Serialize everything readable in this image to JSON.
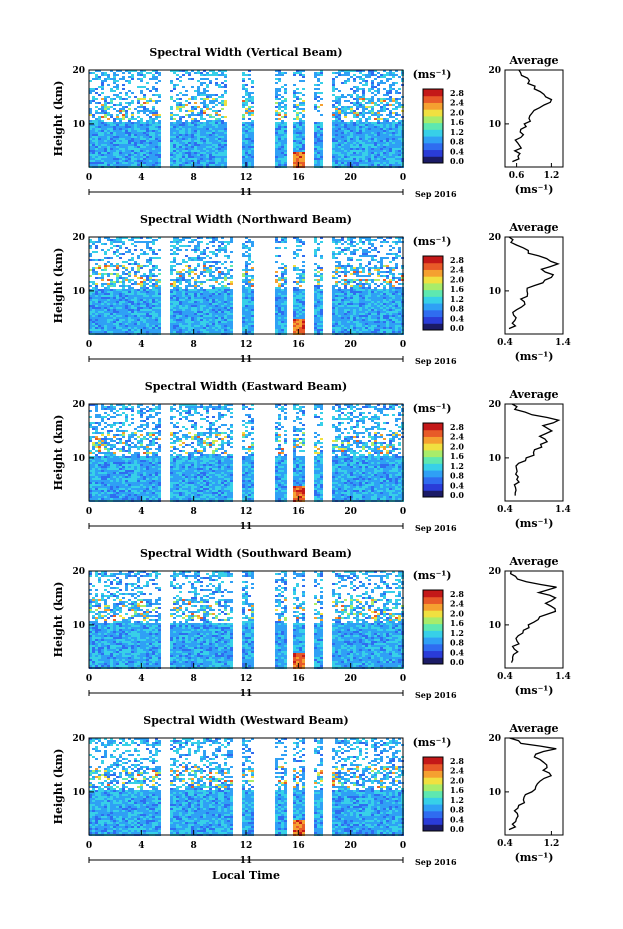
{
  "colors": {
    "scale": [
      "#1b1b66",
      "#2a3cd8",
      "#2f6cf0",
      "#2fa0f5",
      "#37d0e8",
      "#5ee8b0",
      "#a8ec6a",
      "#f0e040",
      "#f5a030",
      "#e85a28",
      "#c41818"
    ],
    "line": "#000000",
    "bg": "#ffffff"
  },
  "shared": {
    "ylabel": "Height (km)",
    "xlabel": "Local Time",
    "date_label": "Sep 2016",
    "day_label": "11",
    "unit_label": "(ms⁻¹)",
    "avg_title": "Average",
    "avg_unit": "(ms⁻¹)"
  },
  "chart_data": [
    {
      "type": "heatmap",
      "title": "Spectral Width (Vertical Beam)",
      "xlabel": "",
      "ylabel": "Height (km)",
      "xlim": [
        0,
        24
      ],
      "ylim": [
        2,
        20
      ],
      "xticks": [
        "0",
        "4",
        "8",
        "12",
        "16",
        "20",
        "0"
      ],
      "yticks": [
        "20",
        "10"
      ],
      "colorbar_ticks": [
        "2.8",
        "2.4",
        "2.0",
        "1.6",
        "1.2",
        "0.8",
        "0.4",
        "0.0"
      ],
      "data_gaps_hours": [
        [
          5.5,
          6.0
        ],
        [
          10.5,
          11.5
        ],
        [
          12.5,
          14.0
        ],
        [
          15.0,
          15.5
        ],
        [
          16.5,
          17.0
        ],
        [
          17.8,
          18.5
        ]
      ],
      "average_profile": {
        "xticks": [
          "0.6",
          "1.2"
        ],
        "xlim": [
          0.4,
          1.4
        ],
        "points": [
          [
            0.55,
            3
          ],
          [
            0.6,
            4
          ],
          [
            0.58,
            5
          ],
          [
            0.65,
            6
          ],
          [
            0.6,
            7
          ],
          [
            0.7,
            8
          ],
          [
            0.65,
            9
          ],
          [
            0.75,
            10
          ],
          [
            0.8,
            11
          ],
          [
            0.85,
            12
          ],
          [
            1.0,
            13
          ],
          [
            1.2,
            14
          ],
          [
            1.1,
            15
          ],
          [
            1.0,
            16
          ],
          [
            0.9,
            17
          ],
          [
            0.8,
            18
          ],
          [
            0.7,
            19
          ],
          [
            0.65,
            20
          ]
        ]
      }
    },
    {
      "type": "heatmap",
      "title": "Spectral Width (Northward Beam)",
      "xlabel": "",
      "ylabel": "Height (km)",
      "xlim": [
        0,
        24
      ],
      "ylim": [
        2,
        20
      ],
      "xticks": [
        "0",
        "4",
        "8",
        "12",
        "16",
        "20",
        "0"
      ],
      "yticks": [
        "20",
        "10"
      ],
      "colorbar_ticks": [
        "2.8",
        "2.4",
        "2.0",
        "1.6",
        "1.2",
        "0.8",
        "0.4",
        "0.0"
      ],
      "data_gaps_hours": [
        [
          5.5,
          6.0
        ],
        [
          11.0,
          11.5
        ],
        [
          12.5,
          14.0
        ],
        [
          15.0,
          15.5
        ],
        [
          16.5,
          17.0
        ],
        [
          17.8,
          18.5
        ]
      ],
      "average_profile": {
        "xticks": [
          "0.4",
          "1.4"
        ],
        "xlim": [
          0.4,
          1.4
        ],
        "points": [
          [
            0.5,
            3
          ],
          [
            0.55,
            4
          ],
          [
            0.6,
            5
          ],
          [
            0.55,
            6
          ],
          [
            0.65,
            7
          ],
          [
            0.7,
            8
          ],
          [
            0.75,
            9
          ],
          [
            0.8,
            10
          ],
          [
            0.9,
            11
          ],
          [
            1.1,
            12
          ],
          [
            1.25,
            13
          ],
          [
            1.0,
            14
          ],
          [
            1.3,
            15
          ],
          [
            1.1,
            16
          ],
          [
            0.8,
            17
          ],
          [
            0.7,
            18
          ],
          [
            0.5,
            19
          ],
          [
            0.45,
            20
          ]
        ]
      }
    },
    {
      "type": "heatmap",
      "title": "Spectral Width (Eastward Beam)",
      "xlabel": "",
      "ylabel": "Height (km)",
      "xlim": [
        0,
        24
      ],
      "ylim": [
        2,
        20
      ],
      "xticks": [
        "0",
        "4",
        "8",
        "12",
        "16",
        "20",
        "0"
      ],
      "yticks": [
        "20",
        "10"
      ],
      "colorbar_ticks": [
        "2.8",
        "2.4",
        "2.0",
        "1.6",
        "1.2",
        "0.8",
        "0.4",
        "0.0"
      ],
      "data_gaps_hours": [
        [
          5.5,
          6.0
        ],
        [
          11.0,
          11.5
        ],
        [
          12.5,
          14.0
        ],
        [
          15.0,
          15.5
        ],
        [
          16.5,
          17.0
        ],
        [
          17.8,
          18.5
        ]
      ],
      "average_profile": {
        "xticks": [
          "0.4",
          "1.4"
        ],
        "xlim": [
          0.4,
          1.4
        ],
        "points": [
          [
            0.55,
            3
          ],
          [
            0.6,
            4
          ],
          [
            0.55,
            5
          ],
          [
            0.6,
            6
          ],
          [
            0.58,
            7
          ],
          [
            0.6,
            8
          ],
          [
            0.65,
            9
          ],
          [
            0.8,
            10
          ],
          [
            0.9,
            11
          ],
          [
            1.0,
            12
          ],
          [
            1.15,
            13
          ],
          [
            1.0,
            14
          ],
          [
            1.2,
            15
          ],
          [
            1.05,
            16
          ],
          [
            1.3,
            17
          ],
          [
            0.9,
            18
          ],
          [
            0.6,
            19
          ],
          [
            0.5,
            20
          ]
        ]
      }
    },
    {
      "type": "heatmap",
      "title": "Spectral Width (Southward Beam)",
      "xlabel": "",
      "ylabel": "Height (km)",
      "xlim": [
        0,
        24
      ],
      "ylim": [
        2,
        20
      ],
      "xticks": [
        "0",
        "4",
        "8",
        "12",
        "16",
        "20",
        "0"
      ],
      "yticks": [
        "20",
        "10"
      ],
      "colorbar_ticks": [
        "2.8",
        "2.4",
        "2.0",
        "1.6",
        "1.2",
        "0.8",
        "0.4",
        "0.0"
      ],
      "data_gaps_hours": [
        [
          5.5,
          6.0
        ],
        [
          11.0,
          11.5
        ],
        [
          12.5,
          14.0
        ],
        [
          15.0,
          15.5
        ],
        [
          16.5,
          17.0
        ],
        [
          17.8,
          18.5
        ]
      ],
      "average_profile": {
        "xticks": [
          "0.4",
          "1.4"
        ],
        "xlim": [
          0.4,
          1.4
        ],
        "points": [
          [
            0.5,
            3
          ],
          [
            0.55,
            4
          ],
          [
            0.6,
            5
          ],
          [
            0.55,
            6
          ],
          [
            0.6,
            7
          ],
          [
            0.62,
            8
          ],
          [
            0.7,
            9
          ],
          [
            0.8,
            10
          ],
          [
            0.95,
            11
          ],
          [
            1.15,
            12
          ],
          [
            1.25,
            13
          ],
          [
            1.1,
            14
          ],
          [
            1.3,
            15
          ],
          [
            1.0,
            16
          ],
          [
            1.3,
            17
          ],
          [
            0.8,
            18
          ],
          [
            0.55,
            19
          ],
          [
            0.5,
            20
          ]
        ]
      }
    },
    {
      "type": "heatmap",
      "title": "Spectral Width (Westward Beam)",
      "xlabel": "Local Time",
      "ylabel": "Height (km)",
      "xlim": [
        0,
        24
      ],
      "ylim": [
        2,
        20
      ],
      "xticks": [
        "0",
        "4",
        "8",
        "12",
        "16",
        "20",
        "0"
      ],
      "yticks": [
        "20",
        "10"
      ],
      "colorbar_ticks": [
        "2.8",
        "2.4",
        "2.0",
        "1.6",
        "1.2",
        "0.8",
        "0.4",
        "0.0"
      ],
      "data_gaps_hours": [
        [
          5.5,
          6.0
        ],
        [
          11.0,
          11.5
        ],
        [
          12.5,
          14.0
        ],
        [
          15.0,
          15.5
        ],
        [
          16.5,
          17.0
        ],
        [
          17.8,
          18.5
        ]
      ],
      "average_profile": {
        "xticks": [
          "0.4",
          "1.2"
        ],
        "xlim": [
          0.4,
          1.4
        ],
        "points": [
          [
            0.5,
            3
          ],
          [
            0.55,
            4
          ],
          [
            0.6,
            5
          ],
          [
            0.58,
            6
          ],
          [
            0.62,
            7
          ],
          [
            0.7,
            8
          ],
          [
            0.75,
            9
          ],
          [
            0.85,
            10
          ],
          [
            0.9,
            11
          ],
          [
            1.0,
            12
          ],
          [
            1.2,
            13
          ],
          [
            1.05,
            14
          ],
          [
            1.15,
            15
          ],
          [
            1.0,
            16
          ],
          [
            0.9,
            17
          ],
          [
            1.3,
            18
          ],
          [
            0.7,
            19
          ],
          [
            0.5,
            20
          ]
        ]
      }
    }
  ]
}
